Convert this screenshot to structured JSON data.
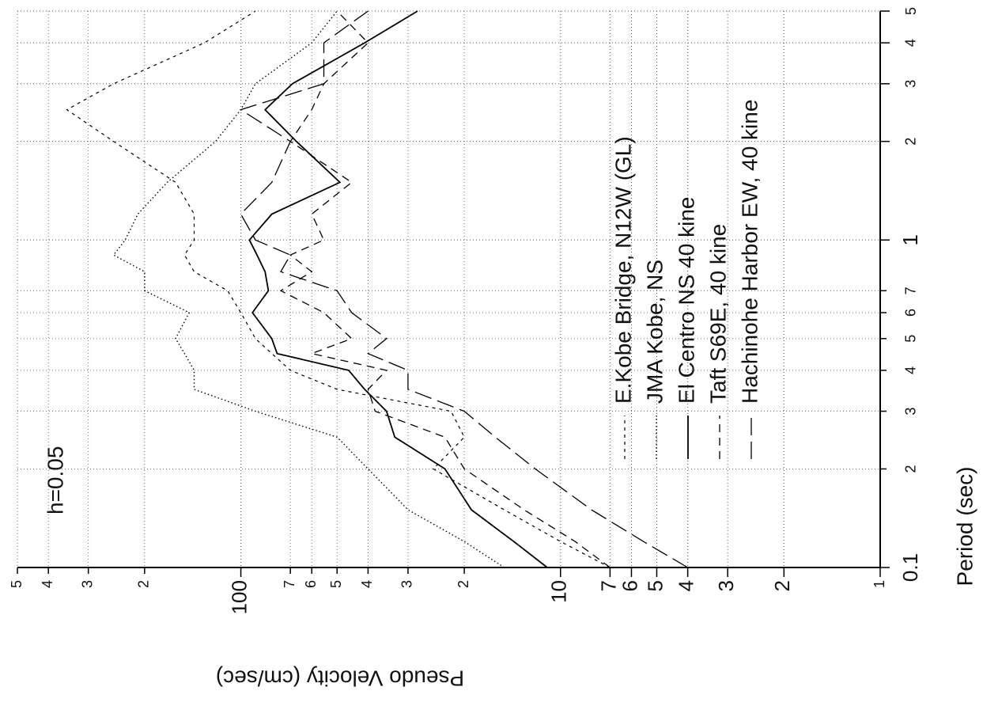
{
  "chart_data": {
    "type": "line",
    "annotation": "h=0.05",
    "x_label": "Period (sec)",
    "y_label": "Pseudo Velocity (cm/sec)",
    "x_log": true,
    "y_log": true,
    "grid": true,
    "x": [
      0.1,
      0.12,
      0.15,
      0.2,
      0.25,
      0.3,
      0.35,
      0.4,
      0.45,
      0.5,
      0.6,
      0.7,
      0.8,
      0.9,
      1,
      1.2,
      1.5,
      2,
      2.5,
      3,
      4,
      5
    ],
    "series": [
      {
        "name": "E.Kobe Bridge, N12W (GL)",
        "color": "#000",
        "dash": "4,5",
        "width": 1.2,
        "values": [
          7,
          10,
          15,
          25,
          20,
          22,
          50,
          70,
          80,
          90,
          100,
          110,
          140,
          150,
          140,
          140,
          160,
          250,
          350,
          250,
          130,
          90
        ]
      },
      {
        "name": "JMA Kobe, NS",
        "color": "#000",
        "dash": "1.5,3",
        "width": 1.4,
        "values": [
          15,
          20,
          30,
          40,
          50,
          90,
          140,
          140,
          150,
          160,
          145,
          200,
          200,
          250,
          230,
          210,
          170,
          120,
          100,
          90,
          60,
          50
        ]
      },
      {
        "name": "El Centro NS 40 kine",
        "color": "#000",
        "dash": "",
        "width": 1.8,
        "values": [
          11,
          14,
          19,
          23,
          33,
          35,
          41,
          46,
          77,
          80,
          92,
          82,
          84,
          89,
          94,
          80,
          49,
          67,
          84,
          69,
          41,
          28
        ]
      },
      {
        "name": "Taft S69E, 40 kine",
        "color": "#000",
        "dash": "10,7",
        "width": 1.3,
        "values": [
          7,
          9,
          13,
          20,
          23,
          38,
          40,
          35,
          60,
          45,
          55,
          75,
          60,
          70,
          55,
          60,
          45,
          70,
          60,
          55,
          40,
          50
        ]
      },
      {
        "name": "Hachinohe Harbor EW, 40 kine",
        "color": "#000",
        "dash": "22,8",
        "width": 1.3,
        "values": [
          4,
          5.5,
          8,
          12,
          16,
          20,
          30,
          30,
          40,
          35,
          45,
          50,
          75,
          70,
          90,
          100,
          80,
          70,
          100,
          55,
          55,
          40
        ]
      }
    ],
    "xlim": [
      0.1,
      5
    ],
    "xticks": [
      0.1,
      {
        "value": 0.2,
        "label": "2"
      },
      {
        "value": 0.3,
        "label": "3"
      },
      {
        "value": 0.4,
        "label": "4"
      },
      {
        "value": 0.5,
        "label": "5"
      },
      {
        "value": 0.6,
        "label": "6"
      },
      {
        "value": 0.7,
        "label": "7"
      },
      1,
      2,
      3,
      4,
      5
    ],
    "ylim": [
      1,
      500
    ],
    "yticks": [
      1,
      2,
      3,
      4,
      5,
      6,
      7,
      10,
      {
        "value": 20,
        "label": "2"
      },
      {
        "value": 30,
        "label": "3"
      },
      {
        "value": 40,
        "label": "4"
      },
      {
        "value": 50,
        "label": "5"
      },
      {
        "value": 60,
        "label": "6"
      },
      {
        "value": 70,
        "label": "7"
      },
      100,
      {
        "value": 200,
        "label": "2"
      },
      {
        "value": 300,
        "label": "3"
      },
      {
        "value": 400,
        "label": "4"
      },
      {
        "value": 500,
        "label": "5"
      }
    ]
  }
}
